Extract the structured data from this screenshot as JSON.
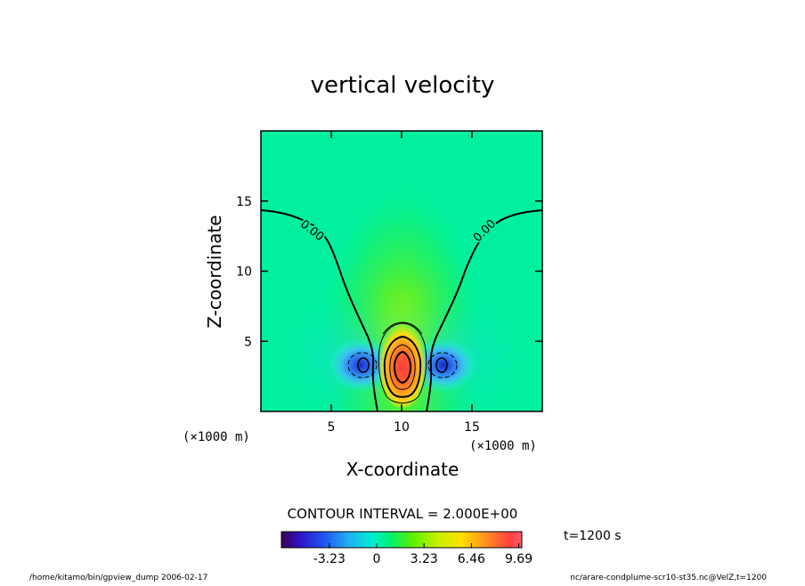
{
  "chart_data": {
    "type": "heatmap",
    "title": "vertical velocity",
    "xlabel": "X-coordinate",
    "ylabel": "Z-coordinate",
    "x_unit": "(×1000 m)",
    "y_unit": "(×1000 m)",
    "xlim": [
      0,
      20
    ],
    "ylim": [
      0,
      20
    ],
    "x_ticks": [
      5,
      10,
      15
    ],
    "y_ticks": [
      5,
      10,
      15
    ],
    "contour_interval_text": "CONTOUR INTERVAL = 2.000E+00",
    "contour_labels": [
      "0.00",
      "0.00"
    ],
    "colorbar": {
      "range": [
        -6.5,
        9.9
      ],
      "ticks": [
        -3.23,
        0,
        3.23,
        6.46,
        9.69
      ],
      "tick_labels": [
        "-3.23",
        "0",
        "3.23",
        "6.46",
        "9.69"
      ]
    },
    "time_label": "t=1200 s",
    "features": [
      {
        "name": "updraft core",
        "x": 10,
        "z": 3,
        "value": 9.69
      },
      {
        "name": "downdraft left",
        "x": 7.5,
        "z": 3,
        "value": -5.5
      },
      {
        "name": "downdraft right",
        "x": 12.5,
        "z": 3,
        "value": -5.5
      }
    ]
  },
  "footer": {
    "left": "/home/kitamo/bin/gpview_dump  2006-02-17",
    "right": "nc/arare-condplume-scr10-st35.nc@VelZ,t=1200"
  }
}
